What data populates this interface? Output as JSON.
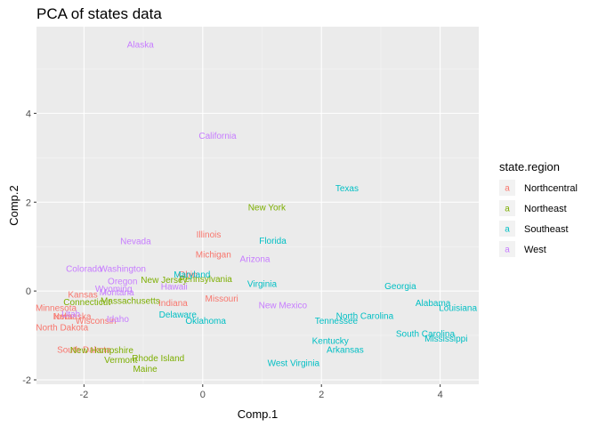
{
  "chart_data": {
    "type": "scatter",
    "title": "PCA of states data",
    "xlabel": "Comp.1",
    "ylabel": "Comp.2",
    "xlim": [
      -2.8,
      4.65
    ],
    "ylim": [
      -2.1,
      5.95
    ],
    "x_ticks": [
      -2,
      0,
      2,
      4
    ],
    "y_ticks": [
      -2,
      0,
      2,
      4
    ],
    "grid": true,
    "legend": {
      "title": "state.region",
      "position": "right",
      "key_letter": "a",
      "entries": [
        {
          "name": "Northcentral",
          "color": "#F8766D"
        },
        {
          "name": "Northeast",
          "color": "#7CAE00"
        },
        {
          "name": "Southeast",
          "color": "#00BFC4"
        },
        {
          "name": "West",
          "color": "#C77CFF"
        }
      ]
    },
    "series": [
      {
        "name": "Northcentral",
        "color": "#F8766D",
        "points": [
          {
            "label": "Illinois",
            "x": 0.1,
            "y": 1.27
          },
          {
            "label": "Michigan",
            "x": 0.18,
            "y": 0.82
          },
          {
            "label": "Ohio",
            "x": -0.25,
            "y": 0.37
          },
          {
            "label": "Indiana",
            "x": -0.5,
            "y": -0.27
          },
          {
            "label": "Missouri",
            "x": 0.32,
            "y": -0.17
          },
          {
            "label": "Kansas",
            "x": -2.02,
            "y": -0.08
          },
          {
            "label": "Minnesota",
            "x": -2.47,
            "y": -0.38
          },
          {
            "label": "Nebraska",
            "x": -2.2,
            "y": -0.57
          },
          {
            "label": "Iowa",
            "x": -2.35,
            "y": -0.57
          },
          {
            "label": "Wisconsin",
            "x": -1.8,
            "y": -0.67
          },
          {
            "label": "North Dakota",
            "x": -2.37,
            "y": -0.82
          },
          {
            "label": "South Dakota",
            "x": -2.0,
            "y": -1.32
          }
        ]
      },
      {
        "name": "Northeast",
        "color": "#7CAE00",
        "points": [
          {
            "label": "New York",
            "x": 1.08,
            "y": 1.88
          },
          {
            "label": "Pennsylvania",
            "x": 0.05,
            "y": 0.27
          },
          {
            "label": "New Jersey",
            "x": -0.65,
            "y": 0.25
          },
          {
            "label": "Massachusetts",
            "x": -1.22,
            "y": -0.22
          },
          {
            "label": "Connecticut",
            "x": -1.95,
            "y": -0.25
          },
          {
            "label": "New Hampshire",
            "x": -1.7,
            "y": -1.33
          },
          {
            "label": "Vermont",
            "x": -1.38,
            "y": -1.55
          },
          {
            "label": "Rhode Island",
            "x": -0.75,
            "y": -1.51
          },
          {
            "label": "Maine",
            "x": -0.97,
            "y": -1.75
          }
        ]
      },
      {
        "name": "Southeast",
        "color": "#00BFC4",
        "points": [
          {
            "label": "Texas",
            "x": 2.43,
            "y": 2.32
          },
          {
            "label": "Florida",
            "x": 1.18,
            "y": 1.13
          },
          {
            "label": "Maryland",
            "x": -0.18,
            "y": 0.37
          },
          {
            "label": "Virginia",
            "x": 1.0,
            "y": 0.16
          },
          {
            "label": "Delaware",
            "x": -0.42,
            "y": -0.53
          },
          {
            "label": "Oklahoma",
            "x": 0.05,
            "y": -0.67
          },
          {
            "label": "Georgia",
            "x": 3.33,
            "y": 0.11
          },
          {
            "label": "Alabama",
            "x": 3.88,
            "y": -0.27
          },
          {
            "label": "Louisiana",
            "x": 4.3,
            "y": -0.38
          },
          {
            "label": "North Carolina",
            "x": 2.73,
            "y": -0.56
          },
          {
            "label": "Tennessee",
            "x": 2.25,
            "y": -0.67
          },
          {
            "label": "South Carolina",
            "x": 3.75,
            "y": -0.96
          },
          {
            "label": "Mississippi",
            "x": 4.1,
            "y": -1.07
          },
          {
            "label": "Kentucky",
            "x": 2.15,
            "y": -1.12
          },
          {
            "label": "Arkansas",
            "x": 2.4,
            "y": -1.32
          },
          {
            "label": "West Virginia",
            "x": 1.53,
            "y": -1.62
          }
        ]
      },
      {
        "name": "West",
        "color": "#C77CFF",
        "points": [
          {
            "label": "Alaska",
            "x": -1.05,
            "y": 5.55
          },
          {
            "label": "California",
            "x": 0.25,
            "y": 3.5
          },
          {
            "label": "Nevada",
            "x": -1.13,
            "y": 1.12
          },
          {
            "label": "Arizona",
            "x": 0.88,
            "y": 0.72
          },
          {
            "label": "Colorado",
            "x": -2.0,
            "y": 0.5
          },
          {
            "label": "Washington",
            "x": -1.35,
            "y": 0.5
          },
          {
            "label": "Oregon",
            "x": -1.35,
            "y": 0.22
          },
          {
            "label": "Wyoming",
            "x": -1.5,
            "y": 0.05
          },
          {
            "label": "Montana",
            "x": -1.45,
            "y": -0.03
          },
          {
            "label": "Hawaii",
            "x": -0.48,
            "y": 0.1
          },
          {
            "label": "Utah",
            "x": -2.22,
            "y": -0.52
          },
          {
            "label": "Idaho",
            "x": -1.43,
            "y": -0.63
          },
          {
            "label": "New Mexico",
            "x": 1.35,
            "y": -0.32
          }
        ]
      }
    ]
  }
}
